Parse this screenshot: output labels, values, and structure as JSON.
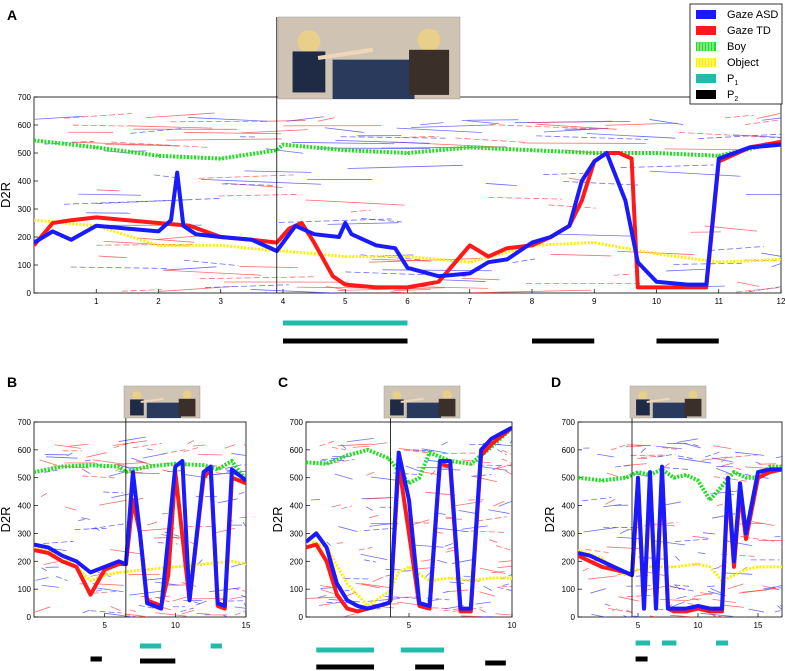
{
  "figure": {
    "legend": {
      "position": "top-right",
      "entries": [
        {
          "label": "Gaze ASD",
          "color": "#1a1aff",
          "style": "solid"
        },
        {
          "label": "Gaze TD",
          "color": "#ff1a1a",
          "style": "solid"
        },
        {
          "label": "Boy",
          "color": "#22dd22",
          "style": "dotted"
        },
        {
          "label": "Object",
          "color": "#ffee00",
          "style": "dotted"
        },
        {
          "label": "P",
          "sub": "1",
          "color": "#22bbaa",
          "style": "bar"
        },
        {
          "label": "P",
          "sub": "2",
          "color": "#000000",
          "style": "bar"
        }
      ]
    }
  },
  "chart_data": [
    {
      "panel": "A",
      "type": "line",
      "ylabel": "D2R",
      "ylim": [
        0,
        700
      ],
      "yticks": [
        0,
        100,
        200,
        300,
        400,
        500,
        600,
        700
      ],
      "xlim": [
        0,
        12
      ],
      "xticks": [
        1,
        2,
        3,
        4,
        5,
        6,
        7,
        8,
        9,
        10,
        11,
        12
      ],
      "event_x": 3.9,
      "series": [
        {
          "name": "Gaze ASD",
          "x": [
            0,
            0.3,
            0.6,
            1,
            1.5,
            2,
            2.2,
            2.3,
            2.4,
            2.6,
            3,
            3.5,
            3.9,
            4.2,
            4.5,
            4.9,
            5,
            5.1,
            5.3,
            5.5,
            5.8,
            6,
            6.5,
            7,
            7.3,
            7.6,
            8,
            8.3,
            8.6,
            8.8,
            9,
            9.2,
            9.5,
            9.7,
            10,
            10.5,
            10.8,
            11,
            11.5,
            12
          ],
          "y": [
            180,
            220,
            190,
            240,
            230,
            220,
            260,
            430,
            240,
            210,
            200,
            190,
            150,
            240,
            210,
            200,
            250,
            210,
            190,
            170,
            160,
            90,
            60,
            70,
            110,
            120,
            180,
            200,
            240,
            400,
            470,
            500,
            330,
            110,
            40,
            30,
            30,
            480,
            520,
            530
          ]
        },
        {
          "name": "Gaze TD",
          "x": [
            0,
            0.3,
            0.6,
            1,
            1.5,
            2,
            2.5,
            3,
            3.5,
            3.9,
            4.1,
            4.3,
            4.5,
            4.8,
            5,
            5.5,
            6,
            6.5,
            7,
            7.3,
            7.6,
            8,
            8.3,
            8.6,
            8.8,
            9,
            9.2,
            9.4,
            9.6,
            9.7,
            10,
            10.5,
            10.8,
            11,
            11.5,
            12
          ],
          "y": [
            170,
            250,
            260,
            270,
            260,
            250,
            240,
            200,
            190,
            180,
            230,
            250,
            180,
            60,
            30,
            20,
            20,
            40,
            170,
            130,
            160,
            170,
            200,
            240,
            330,
            470,
            500,
            500,
            480,
            20,
            20,
            20,
            20,
            470,
            520,
            540
          ]
        },
        {
          "name": "Boy",
          "x": [
            0,
            1,
            2,
            3,
            3.9,
            4,
            5,
            6,
            7,
            8,
            9,
            10,
            11,
            12
          ],
          "y": [
            545,
            520,
            490,
            480,
            510,
            530,
            510,
            500,
            520,
            510,
            500,
            500,
            490,
            540
          ]
        },
        {
          "name": "Object",
          "x": [
            0,
            1,
            2,
            3,
            3.9,
            4,
            5,
            6,
            7,
            8,
            9,
            10,
            11,
            12
          ],
          "y": [
            260,
            240,
            170,
            170,
            150,
            150,
            130,
            130,
            110,
            170,
            180,
            140,
            110,
            120
          ]
        }
      ],
      "periods": {
        "P1": [
          [
            4,
            6
          ]
        ],
        "P2": [
          [
            4,
            6
          ],
          [
            8,
            9
          ],
          [
            10,
            11
          ]
        ]
      }
    },
    {
      "panel": "B",
      "type": "line",
      "ylabel": "D2R",
      "ylim": [
        0,
        700
      ],
      "yticks": [
        0,
        100,
        200,
        300,
        400,
        500,
        600,
        700
      ],
      "xlim": [
        0,
        15
      ],
      "xticks": [
        5,
        10,
        15
      ],
      "event_x": 6.5,
      "series": [
        {
          "name": "Gaze ASD",
          "x": [
            0,
            1,
            2,
            3,
            4,
            5,
            6,
            6.5,
            7,
            7.5,
            8,
            9,
            10,
            10.5,
            11,
            12,
            12.5,
            13,
            13.5,
            14,
            15
          ],
          "y": [
            260,
            250,
            220,
            200,
            160,
            180,
            200,
            190,
            520,
            300,
            50,
            30,
            540,
            560,
            60,
            520,
            540,
            50,
            40,
            530,
            490
          ]
        },
        {
          "name": "Gaze TD",
          "x": [
            0,
            1,
            2,
            3,
            4,
            5,
            6,
            6.5,
            7,
            7.5,
            8,
            9,
            9.5,
            10,
            11,
            12,
            12.5,
            13,
            13.5,
            14,
            15
          ],
          "y": [
            240,
            230,
            200,
            180,
            80,
            170,
            190,
            190,
            420,
            300,
            60,
            40,
            150,
            520,
            60,
            500,
            530,
            40,
            30,
            500,
            480
          ]
        },
        {
          "name": "Boy",
          "x": [
            0,
            2,
            4,
            6,
            6.5,
            8,
            10,
            12,
            13,
            14,
            15
          ],
          "y": [
            520,
            540,
            545,
            540,
            520,
            540,
            550,
            545,
            530,
            560,
            490
          ]
        },
        {
          "name": "Object",
          "x": [
            0,
            2,
            3,
            4,
            5,
            6,
            8,
            10,
            12,
            14,
            15
          ],
          "y": [
            250,
            220,
            180,
            130,
            150,
            160,
            170,
            180,
            190,
            200,
            190
          ]
        }
      ],
      "periods": {
        "P1": [
          [
            7.5,
            9
          ],
          [
            12.5,
            13.3
          ]
        ],
        "P2": [
          [
            4,
            4.8
          ],
          [
            7.5,
            10
          ]
        ]
      }
    },
    {
      "panel": "C",
      "type": "line",
      "ylabel": "D2R",
      "ylim": [
        0,
        700
      ],
      "yticks": [
        0,
        100,
        200,
        300,
        400,
        500,
        600,
        700
      ],
      "xlim": [
        0,
        10
      ],
      "xticks": [
        5,
        10
      ],
      "event_x": 4.1,
      "series": [
        {
          "name": "Gaze ASD",
          "x": [
            0,
            0.5,
            1,
            1.5,
            2,
            2.5,
            3,
            3.5,
            4,
            4.1,
            4.5,
            5,
            5.5,
            6,
            6.5,
            7,
            7.5,
            8,
            8.5,
            9,
            9.5,
            10
          ],
          "y": [
            270,
            300,
            250,
            120,
            60,
            40,
            30,
            40,
            50,
            60,
            590,
            420,
            50,
            40,
            560,
            560,
            30,
            30,
            600,
            640,
            660,
            680
          ]
        },
        {
          "name": "Gaze TD",
          "x": [
            0,
            0.5,
            1,
            1.5,
            2,
            2.5,
            3,
            3.5,
            4,
            4.1,
            4.5,
            5,
            5.5,
            6,
            6.5,
            7,
            7.5,
            8,
            8.5,
            9,
            9.5,
            10
          ],
          "y": [
            250,
            260,
            200,
            80,
            30,
            20,
            30,
            40,
            50,
            60,
            550,
            300,
            40,
            30,
            550,
            540,
            20,
            20,
            580,
            620,
            650,
            680
          ]
        },
        {
          "name": "Boy",
          "x": [
            0,
            1,
            2,
            3,
            4,
            5,
            5.5,
            6,
            7,
            8,
            9,
            10
          ],
          "y": [
            555,
            550,
            580,
            600,
            570,
            480,
            500,
            590,
            560,
            550,
            610,
            680
          ]
        },
        {
          "name": "Object",
          "x": [
            0,
            1,
            2,
            3,
            4,
            4.5,
            5,
            6,
            7,
            8,
            9,
            10
          ],
          "y": [
            280,
            250,
            120,
            40,
            90,
            160,
            180,
            130,
            140,
            130,
            140,
            140
          ]
        }
      ],
      "periods": {
        "P1": [
          [
            0.5,
            3.3
          ],
          [
            4.6,
            6.7
          ]
        ],
        "P2": [
          [
            0.5,
            3.3
          ],
          [
            5.3,
            6.7
          ],
          [
            8.7,
            9.7
          ]
        ]
      }
    },
    {
      "panel": "D",
      "type": "line",
      "ylabel": "D2R",
      "ylim": [
        0,
        700
      ],
      "yticks": [
        0,
        100,
        200,
        300,
        400,
        500,
        600,
        700
      ],
      "xlim": [
        0,
        17
      ],
      "xticks": [
        5,
        10,
        15
      ],
      "event_x": 4.5,
      "series": [
        {
          "name": "Gaze ASD",
          "x": [
            0,
            1,
            2,
            3,
            4,
            4.5,
            5,
            5.5,
            6,
            6.5,
            7,
            7.5,
            8,
            9,
            10,
            11,
            12,
            12.5,
            13,
            13.5,
            14,
            15,
            16,
            17
          ],
          "y": [
            230,
            220,
            200,
            180,
            160,
            150,
            500,
            30,
            520,
            30,
            540,
            30,
            30,
            30,
            40,
            30,
            30,
            500,
            200,
            480,
            300,
            520,
            530,
            530
          ]
        },
        {
          "name": "Gaze TD",
          "x": [
            0,
            1,
            2,
            3,
            4,
            4.5,
            5,
            5.5,
            6,
            6.5,
            7,
            7.5,
            8,
            9,
            10,
            11,
            12,
            12.5,
            13,
            13.5,
            14,
            15,
            16,
            17
          ],
          "y": [
            220,
            200,
            180,
            170,
            160,
            150,
            480,
            30,
            500,
            30,
            520,
            30,
            20,
            20,
            30,
            20,
            20,
            480,
            180,
            450,
            280,
            500,
            520,
            530
          ]
        },
        {
          "name": "Boy",
          "x": [
            0,
            2,
            4,
            5,
            6,
            7,
            8,
            9,
            10,
            11,
            12,
            13,
            14,
            15,
            16,
            17
          ],
          "y": [
            500,
            490,
            500,
            520,
            510,
            530,
            500,
            510,
            490,
            420,
            470,
            520,
            500,
            500,
            540,
            540
          ]
        },
        {
          "name": "Object",
          "x": [
            0,
            2,
            3,
            4,
            5,
            6,
            8,
            10,
            11,
            12,
            14,
            15,
            16,
            17
          ],
          "y": [
            240,
            210,
            170,
            150,
            170,
            180,
            180,
            190,
            180,
            130,
            170,
            180,
            180,
            180
          ]
        }
      ],
      "periods": {
        "P1": [
          [
            4.8,
            6
          ],
          [
            7,
            8.2
          ],
          [
            11.5,
            12.5
          ]
        ],
        "P2": [
          [
            4.8,
            5.8
          ]
        ]
      }
    }
  ]
}
